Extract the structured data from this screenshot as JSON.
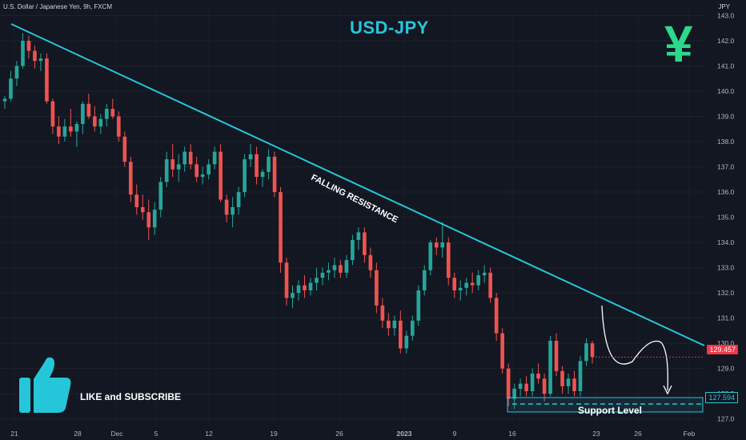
{
  "header": {
    "symbol": "U.S. Dollar / Japanese Yen, 9h, FXCM",
    "currency": "JPY",
    "title": "USD-JPY"
  },
  "annotations": {
    "resistance": "FALLING RESISTANCE",
    "support": "Support Level",
    "cta": "LIKE and SUBSCRIBE",
    "price_current": "129.457",
    "price_support": "127.594"
  },
  "colors": {
    "up": "#26a69a",
    "down": "#ef5350",
    "line": "#26c6da",
    "yen": "#2cd88a"
  },
  "icons": [
    "thumbs-up-icon",
    "yen-icon"
  ],
  "chart_data": {
    "type": "candlestick",
    "y_ticks": [
      127.0,
      128.0,
      129.0,
      130.0,
      131.0,
      132.0,
      133.0,
      134.0,
      135.0,
      136.0,
      137.0,
      138.0,
      139.0,
      140.0,
      141.0,
      142.0,
      143.0
    ],
    "x_ticks": [
      "21",
      "28",
      "Dec",
      "5",
      "12",
      "19",
      "26",
      "2023",
      "9",
      "16",
      "23",
      "26",
      "Feb"
    ],
    "ylim": [
      126.8,
      143.3
    ],
    "current_price": 129.457,
    "support_level": 127.594,
    "candles": [
      [
        139.6,
        139.8,
        139.3,
        139.7
      ],
      [
        139.7,
        140.8,
        139.6,
        140.5
      ],
      [
        140.5,
        141.2,
        140.2,
        141.0
      ],
      [
        141.0,
        142.3,
        140.9,
        142.0
      ],
      [
        142.0,
        142.2,
        141.3,
        141.6
      ],
      [
        141.6,
        141.8,
        140.9,
        141.2
      ],
      [
        141.2,
        141.5,
        140.8,
        141.3
      ],
      [
        141.3,
        141.5,
        139.5,
        139.6
      ],
      [
        139.6,
        139.7,
        138.3,
        138.6
      ],
      [
        138.6,
        139.0,
        137.9,
        138.2
      ],
      [
        138.2,
        138.9,
        138.0,
        138.6
      ],
      [
        138.6,
        139.3,
        138.2,
        138.4
      ],
      [
        138.4,
        138.8,
        137.8,
        138.7
      ],
      [
        138.7,
        139.6,
        138.3,
        139.5
      ],
      [
        139.5,
        139.9,
        138.9,
        139.0
      ],
      [
        139.0,
        139.4,
        138.4,
        138.6
      ],
      [
        138.6,
        139.1,
        138.3,
        138.9
      ],
      [
        138.9,
        139.5,
        138.6,
        139.3
      ],
      [
        139.3,
        139.7,
        138.9,
        139.0
      ],
      [
        139.0,
        139.2,
        138.0,
        138.2
      ],
      [
        138.2,
        138.4,
        137.0,
        137.2
      ],
      [
        137.2,
        137.4,
        135.6,
        135.9
      ],
      [
        135.9,
        136.3,
        135.1,
        135.4
      ],
      [
        135.4,
        135.9,
        134.9,
        135.2
      ],
      [
        135.2,
        135.7,
        134.1,
        134.6
      ],
      [
        134.6,
        135.6,
        134.3,
        135.3
      ],
      [
        135.3,
        136.6,
        135.0,
        136.4
      ],
      [
        136.4,
        137.6,
        136.2,
        137.3
      ],
      [
        137.3,
        137.9,
        136.6,
        136.9
      ],
      [
        136.9,
        137.5,
        136.4,
        137.1
      ],
      [
        137.1,
        137.8,
        136.8,
        137.6
      ],
      [
        137.6,
        137.9,
        136.9,
        137.1
      ],
      [
        137.1,
        137.4,
        136.4,
        136.6
      ],
      [
        136.6,
        137.0,
        136.3,
        136.7
      ],
      [
        136.7,
        137.3,
        136.5,
        137.1
      ],
      [
        137.1,
        137.8,
        136.9,
        137.6
      ],
      [
        137.6,
        137.9,
        135.6,
        135.7
      ],
      [
        135.7,
        135.9,
        134.8,
        135.1
      ],
      [
        135.1,
        135.8,
        134.6,
        135.4
      ],
      [
        135.4,
        136.2,
        135.1,
        136.0
      ],
      [
        136.0,
        137.5,
        135.8,
        137.3
      ],
      [
        137.3,
        137.9,
        137.0,
        137.5
      ],
      [
        137.5,
        137.8,
        136.3,
        136.6
      ],
      [
        136.6,
        136.9,
        136.2,
        136.8
      ],
      [
        136.8,
        137.7,
        136.5,
        137.4
      ],
      [
        137.4,
        137.6,
        135.8,
        136.0
      ],
      [
        136.0,
        136.2,
        132.8,
        133.2
      ],
      [
        133.2,
        133.4,
        131.5,
        131.8
      ],
      [
        131.8,
        132.3,
        131.4,
        132.0
      ],
      [
        132.0,
        132.5,
        131.7,
        132.3
      ],
      [
        132.3,
        132.7,
        131.8,
        132.1
      ],
      [
        132.1,
        132.6,
        131.9,
        132.4
      ],
      [
        132.4,
        133.0,
        132.1,
        132.6
      ],
      [
        132.6,
        133.0,
        132.3,
        132.8
      ],
      [
        132.8,
        133.2,
        132.5,
        132.9
      ],
      [
        132.9,
        133.4,
        132.6,
        133.1
      ],
      [
        133.1,
        133.3,
        132.6,
        132.8
      ],
      [
        132.8,
        133.5,
        132.6,
        133.3
      ],
      [
        133.3,
        134.3,
        133.1,
        134.1
      ],
      [
        134.1,
        134.6,
        133.7,
        134.4
      ],
      [
        134.4,
        134.6,
        133.2,
        133.5
      ],
      [
        133.5,
        133.8,
        132.6,
        132.9
      ],
      [
        132.9,
        133.2,
        131.2,
        131.5
      ],
      [
        131.5,
        131.8,
        130.6,
        130.9
      ],
      [
        130.9,
        131.2,
        130.3,
        130.6
      ],
      [
        130.6,
        131.1,
        130.3,
        130.9
      ],
      [
        130.9,
        131.3,
        129.6,
        129.8
      ],
      [
        129.8,
        130.5,
        129.6,
        130.3
      ],
      [
        130.3,
        131.1,
        130.1,
        130.9
      ],
      [
        130.9,
        132.3,
        130.7,
        132.1
      ],
      [
        132.1,
        133.1,
        131.9,
        132.9
      ],
      [
        132.9,
        134.1,
        132.7,
        134.0
      ],
      [
        134.0,
        134.2,
        133.5,
        133.8
      ],
      [
        133.8,
        134.8,
        133.4,
        134.0
      ],
      [
        134.0,
        134.2,
        132.3,
        132.6
      ],
      [
        132.6,
        132.8,
        131.8,
        132.1
      ],
      [
        132.1,
        132.5,
        131.7,
        132.2
      ],
      [
        132.2,
        132.6,
        131.9,
        132.4
      ],
      [
        132.4,
        132.8,
        132.0,
        132.3
      ],
      [
        132.3,
        132.9,
        132.1,
        132.7
      ],
      [
        132.7,
        133.1,
        132.4,
        132.8
      ],
      [
        132.8,
        133.0,
        131.6,
        131.8
      ],
      [
        131.8,
        132.0,
        130.1,
        130.4
      ],
      [
        130.4,
        130.6,
        128.8,
        129.0
      ],
      [
        129.0,
        129.2,
        127.5,
        127.8
      ],
      [
        127.8,
        128.4,
        127.4,
        128.2
      ],
      [
        128.2,
        128.6,
        127.9,
        128.4
      ],
      [
        128.4,
        128.7,
        127.9,
        128.1
      ],
      [
        128.1,
        129.0,
        127.9,
        128.8
      ],
      [
        128.8,
        129.2,
        128.4,
        128.6
      ],
      [
        128.6,
        128.8,
        127.7,
        128.0
      ],
      [
        128.0,
        130.3,
        127.9,
        130.1
      ],
      [
        130.1,
        130.4,
        128.7,
        128.9
      ],
      [
        128.9,
        129.1,
        128.0,
        128.3
      ],
      [
        128.3,
        128.8,
        128.0,
        128.6
      ],
      [
        128.6,
        128.9,
        127.9,
        128.1
      ],
      [
        128.1,
        129.5,
        127.9,
        129.3
      ],
      [
        129.3,
        130.2,
        129.1,
        130.0
      ],
      [
        130.0,
        130.1,
        129.2,
        129.457
      ]
    ]
  }
}
